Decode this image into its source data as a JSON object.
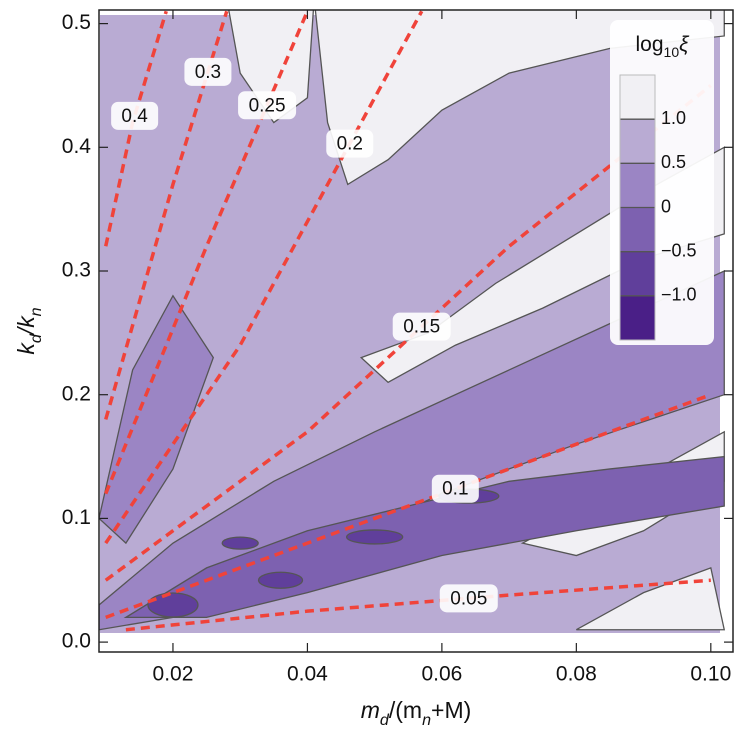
{
  "chart_data": {
    "type": "contour",
    "xlabel": [
      "m",
      "d",
      "/(m",
      "n",
      "+M)"
    ],
    "ylabel": [
      "k",
      "d",
      "/k",
      "n"
    ],
    "xlim": [
      0.009,
      0.1033
    ],
    "ylim": [
      -0.008,
      0.511
    ],
    "xticks": [
      0.02,
      0.04,
      0.06,
      0.08,
      {
        "value": 0.1,
        "label": "0.10"
      }
    ],
    "yticks": [
      {
        "value": 0,
        "label": "0.0"
      },
      0.1,
      0.2,
      0.3,
      0.4,
      0.5
    ],
    "legend": {
      "title": [
        "log",
        "10",
        "ξ"
      ],
      "ticks": [
        {
          "value": 1,
          "label": "1.0"
        },
        0.5,
        0,
        {
          "value": -0.5,
          "label": "−0.5"
        },
        {
          "value": -1,
          "label": "−1.0"
        }
      ],
      "colors": [
        "#f1f0f4",
        "#b9abd3",
        "#9b85c4",
        "#7d61b0",
        "#603f9b",
        "#4a1f87"
      ]
    },
    "series": [
      {
        "name": "0.4",
        "color": "#f0433a",
        "x": [
          0.01,
          0.014,
          0.019
        ],
        "y": [
          0.32,
          0.42,
          0.51
        ]
      },
      {
        "name": "0.3",
        "color": "#f0433a",
        "x": [
          0.01,
          0.02,
          0.028
        ],
        "y": [
          0.18,
          0.37,
          0.51
        ]
      },
      {
        "name": "0.25",
        "color": "#f0433a",
        "x": [
          0.01,
          0.025,
          0.04
        ],
        "y": [
          0.12,
          0.32,
          0.51
        ]
      },
      {
        "name": "0.2",
        "color": "#f0433a",
        "x": [
          0.01,
          0.03,
          0.057
        ],
        "y": [
          0.08,
          0.24,
          0.51
        ]
      },
      {
        "name": "0.15",
        "color": "#f0433a",
        "x": [
          0.01,
          0.04,
          0.07,
          0.1
        ],
        "y": [
          0.05,
          0.17,
          0.32,
          0.45
        ]
      },
      {
        "name": "0.1",
        "color": "#f0433a",
        "x": [
          0.01,
          0.04,
          0.07,
          0.1
        ],
        "y": [
          0.02,
          0.08,
          0.14,
          0.2
        ]
      },
      {
        "name": "0.05",
        "color": "#f0433a",
        "x": [
          0.013,
          0.04,
          0.07,
          0.1
        ],
        "y": [
          0.01,
          0.025,
          0.038,
          0.05
        ]
      }
    ]
  }
}
